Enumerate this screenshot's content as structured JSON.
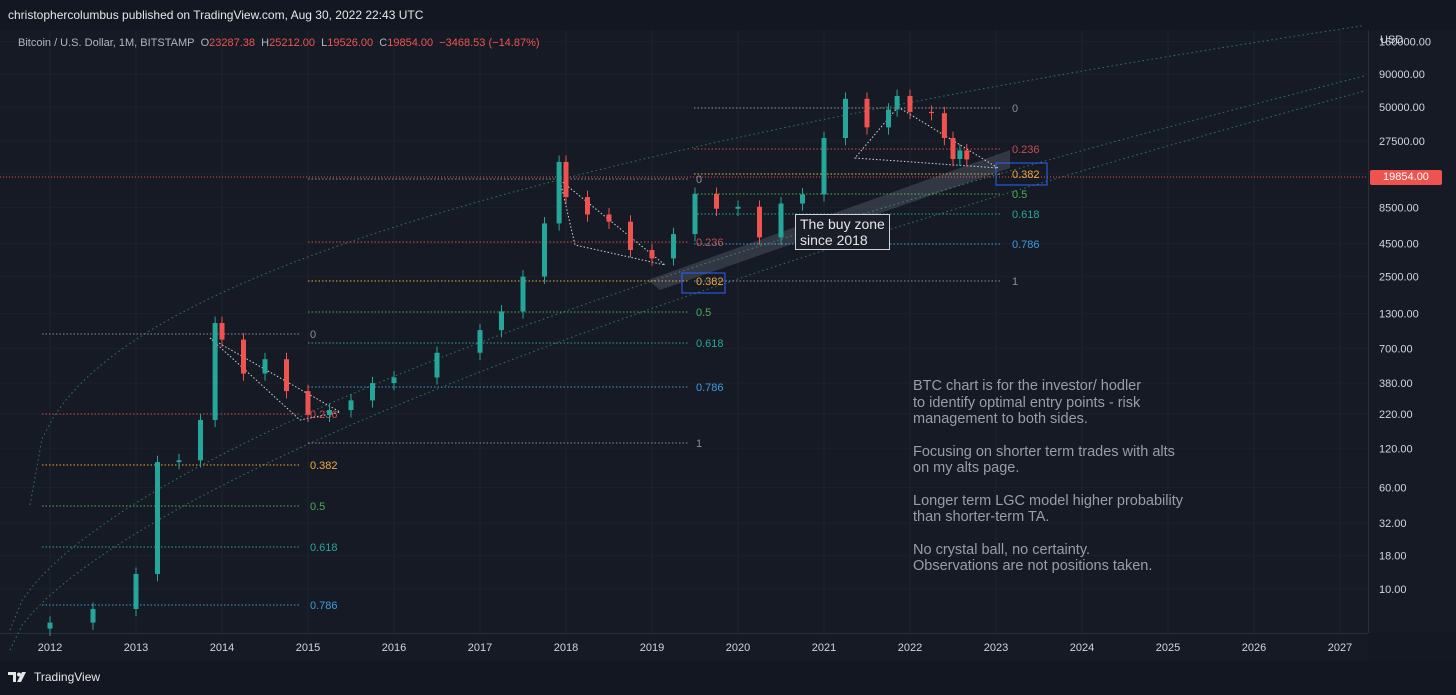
{
  "header": {
    "published": "christophercolumbus published on TradingView.com, Aug 30, 2022 22:43 UTC"
  },
  "legend": {
    "symbol": "Bitcoin / U.S. Dollar, 1M, BITSTAMP",
    "o_label": "O",
    "o_value": "23287.38",
    "h_label": "H",
    "h_value": "25212.00",
    "l_label": "L",
    "l_value": "19526.00",
    "c_label": "C",
    "c_value": "19854.00",
    "change": "−3468.53 (−14.87%)"
  },
  "price_axis": {
    "currency": "USD",
    "current_price": "19854.00"
  },
  "footer": {
    "brand": "TradingView"
  },
  "colors": {
    "up": "#26a69a",
    "down": "#ef5350",
    "fib_0": "#8a8d96",
    "fib_236": "#c94d4d",
    "fib_382": "#f0a93a",
    "fib_5": "#4caf50",
    "fib_618": "#26a69a",
    "fib_786": "#3d9be0",
    "fib_1": "#8a8d96",
    "lgc": "#2e7d5b",
    "buyzone_box": "#2962ff"
  },
  "annotations": {
    "buy_zone": "The buy zone\nsince 2018",
    "note": [
      "BTC chart is for the investor/ hodler\nto identify optimal entry points - risk\nmanagement to both sides.",
      "Focusing on shorter term trades with alts\non my alts page.",
      "Longer term LGC model higher probability\nthan shorter-term TA.",
      "No crystal ball, no certainty.\nObservations are not positions taken."
    ]
  },
  "chart_data": {
    "type": "candlestick",
    "title": "Bitcoin / U.S. Dollar, 1M, BITSTAMP",
    "y_scale": "log",
    "y_ticks": [
      "160000.00",
      "90000.00",
      "50000.00",
      "27500.00",
      "15500.00",
      "8500.00",
      "4500.00",
      "2500.00",
      "1300.00",
      "700.00",
      "380.00",
      "220.00",
      "120.00",
      "60.00",
      "32.00",
      "18.00",
      "10.00"
    ],
    "x_ticks": [
      "2012",
      "2013",
      "2014",
      "2015",
      "2016",
      "2017",
      "2018",
      "2019",
      "2020",
      "2021",
      "2022",
      "2023",
      "2024",
      "2025",
      "2026",
      "2027"
    ],
    "current_price": 19854,
    "closes": [
      {
        "year": 2012.0,
        "close": 5.5
      },
      {
        "year": 2012.5,
        "close": 7
      },
      {
        "year": 2013.0,
        "close": 13
      },
      {
        "year": 2013.25,
        "close": 94
      },
      {
        "year": 2013.5,
        "close": 97
      },
      {
        "year": 2013.75,
        "close": 198
      },
      {
        "year": 2013.92,
        "close": 1100
      },
      {
        "year": 2014.0,
        "close": 820
      },
      {
        "year": 2014.25,
        "close": 450
      },
      {
        "year": 2014.5,
        "close": 580
      },
      {
        "year": 2014.75,
        "close": 330
      },
      {
        "year": 2015.0,
        "close": 217
      },
      {
        "year": 2015.25,
        "close": 236
      },
      {
        "year": 2015.5,
        "close": 280
      },
      {
        "year": 2015.75,
        "close": 380
      },
      {
        "year": 2016.0,
        "close": 420
      },
      {
        "year": 2016.5,
        "close": 650
      },
      {
        "year": 2017.0,
        "close": 970
      },
      {
        "year": 2017.25,
        "close": 1350
      },
      {
        "year": 2017.5,
        "close": 2500
      },
      {
        "year": 2017.75,
        "close": 6400
      },
      {
        "year": 2017.92,
        "close": 19000
      },
      {
        "year": 2018.0,
        "close": 10200
      },
      {
        "year": 2018.25,
        "close": 7500
      },
      {
        "year": 2018.5,
        "close": 6600
      },
      {
        "year": 2018.75,
        "close": 4000
      },
      {
        "year": 2019.0,
        "close": 3450
      },
      {
        "year": 2019.25,
        "close": 5300
      },
      {
        "year": 2019.5,
        "close": 10800
      },
      {
        "year": 2019.75,
        "close": 8300
      },
      {
        "year": 2020.0,
        "close": 8600
      },
      {
        "year": 2020.25,
        "close": 5000
      },
      {
        "year": 2020.5,
        "close": 9100
      },
      {
        "year": 2020.75,
        "close": 10700
      },
      {
        "year": 2021.0,
        "close": 29000
      },
      {
        "year": 2021.25,
        "close": 58000
      },
      {
        "year": 2021.5,
        "close": 35000
      },
      {
        "year": 2021.75,
        "close": 48000
      },
      {
        "year": 2021.85,
        "close": 61000
      },
      {
        "year": 2022.0,
        "close": 46000
      },
      {
        "year": 2022.25,
        "close": 45000
      },
      {
        "year": 2022.4,
        "close": 29000
      },
      {
        "year": 2022.5,
        "close": 20000
      },
      {
        "year": 2022.58,
        "close": 23287
      },
      {
        "year": 2022.66,
        "close": 19854
      }
    ],
    "fib_sets": [
      {
        "name": "2014",
        "labels": [
          "0",
          "0.236",
          "0.382",
          "0.5",
          "0.618",
          "0.786",
          "1"
        ]
      },
      {
        "name": "2018",
        "labels": [
          "0",
          "0.236",
          "0.382",
          "0.5",
          "0.618",
          "0.786",
          "1"
        ]
      },
      {
        "name": "2022",
        "labels": [
          "0",
          "0.236",
          "0.382",
          "0.5",
          "0.618",
          "0.786",
          "1"
        ]
      }
    ]
  }
}
